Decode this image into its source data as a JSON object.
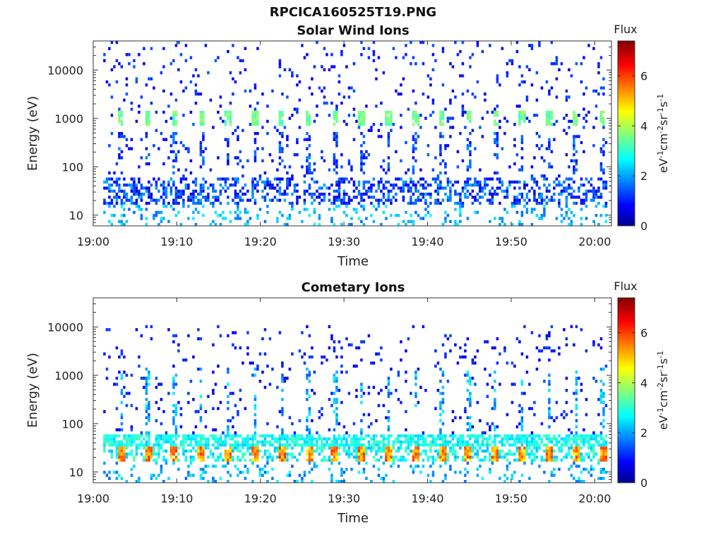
{
  "figure": {
    "title": "RPCICA160525T19.PNG"
  },
  "chart_data": [
    {
      "type": "heatmap",
      "title": "Solar Wind Ions",
      "xlabel": "Time",
      "ylabel": "Energy (eV)",
      "y_scale": "log",
      "x_ticks": [
        "19:00",
        "19:10",
        "19:20",
        "19:30",
        "19:40",
        "19:50",
        "20:00"
      ],
      "x_range": [
        "19:00",
        "20:02"
      ],
      "y_ticks": [
        "10",
        "100",
        "1000",
        "10000"
      ],
      "y_range": [
        6,
        40000
      ],
      "colorbar": {
        "title": "Flux",
        "label_parts": [
          "eV",
          "-1",
          "cm",
          "-2",
          "sr",
          "-1",
          "s",
          "-1"
        ],
        "ticks": [
          "0",
          "2",
          "4",
          "6"
        ],
        "range": [
          0,
          7.4
        ],
        "colormap": "jet"
      },
      "features": [
        {
          "desc": "sparse background counts",
          "energy_range": [
            6,
            40000
          ],
          "flux": 1.0
        },
        {
          "desc": "periodic bursts",
          "energy": 1000,
          "period_min": 3.2,
          "flux": 3.5
        },
        {
          "desc": "dense low energy band",
          "energy_range": [
            20,
            60
          ],
          "flux": 1.5
        }
      ]
    },
    {
      "type": "heatmap",
      "title": "Cometary Ions",
      "xlabel": "Time",
      "ylabel": "Energy (eV)",
      "y_scale": "log",
      "x_ticks": [
        "19:00",
        "19:10",
        "19:20",
        "19:30",
        "19:40",
        "19:50",
        "20:00"
      ],
      "x_range": [
        "19:00",
        "20:02"
      ],
      "y_ticks": [
        "10",
        "100",
        "1000",
        "10000"
      ],
      "y_range": [
        6,
        40000
      ],
      "colorbar": {
        "title": "Flux",
        "label_parts": [
          "eV",
          "-1",
          "cm",
          "-2",
          "sr",
          "-1",
          "s",
          "-1"
        ],
        "ticks": [
          "0",
          "2",
          "4",
          "6"
        ],
        "range": [
          0,
          7.4
        ],
        "colormap": "jet"
      },
      "features": [
        {
          "desc": "sparse background counts",
          "energy_range": [
            6,
            12000
          ],
          "flux": 1.0
        },
        {
          "desc": "periodic high-flux blobs",
          "energy": 25,
          "period_min": 3.2,
          "flux": 5.5
        },
        {
          "desc": "band",
          "energy_range": [
            35,
            60
          ],
          "flux": 3.0
        }
      ]
    }
  ]
}
